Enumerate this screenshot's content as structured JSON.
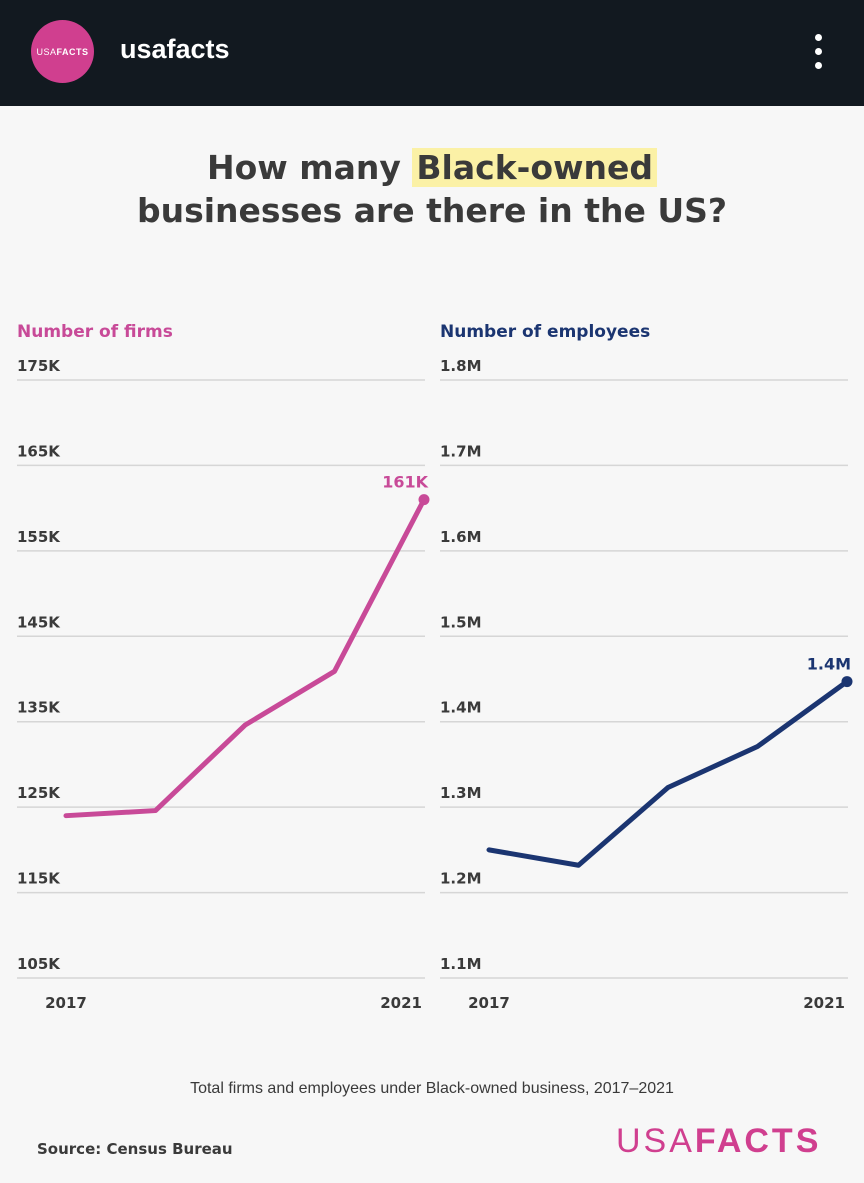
{
  "header": {
    "avatar_text_light": "USA",
    "avatar_text_bold": "FACTS",
    "username": "usafacts"
  },
  "title": {
    "before": "How many ",
    "highlight": "Black-owned",
    "after": "businesses are there in the US?"
  },
  "chart_data": [
    {
      "type": "line",
      "title": "Number of firms",
      "color": "#c84a98",
      "x": [
        2017,
        2018,
        2019,
        2020,
        2021
      ],
      "x_tick_labels": [
        "2017",
        "2021"
      ],
      "y_tick_labels": [
        "175K",
        "165K",
        "155K",
        "145K",
        "135K",
        "125K",
        "115K",
        "105K"
      ],
      "y_ticks": [
        175000,
        165000,
        155000,
        145000,
        135000,
        125000,
        115000,
        105000
      ],
      "ylim": [
        105000,
        175000
      ],
      "values": [
        124000,
        124600,
        134600,
        140900,
        161000
      ],
      "end_label": "161K",
      "grid": true
    },
    {
      "type": "line",
      "title": "Number of employees",
      "color": "#1b3571",
      "x": [
        2017,
        2018,
        2019,
        2020,
        2021
      ],
      "x_tick_labels": [
        "2017",
        "2021"
      ],
      "y_tick_labels": [
        "1.8M",
        "1.7M",
        "1.6M",
        "1.5M",
        "1.4M",
        "1.3M",
        "1.2M",
        "1.1M"
      ],
      "y_ticks": [
        1800000,
        1700000,
        1600000,
        1500000,
        1400000,
        1300000,
        1200000,
        1100000
      ],
      "ylim": [
        1100000,
        1800000
      ],
      "values": [
        1250000,
        1232000,
        1323000,
        1371000,
        1447000
      ],
      "end_label": "1.4M",
      "grid": true
    }
  ],
  "caption": "Total firms and employees under Black-owned business, 2017–2021",
  "source": "Source: Census Bureau",
  "logo": {
    "light": "USA",
    "bold": "FACTS"
  }
}
